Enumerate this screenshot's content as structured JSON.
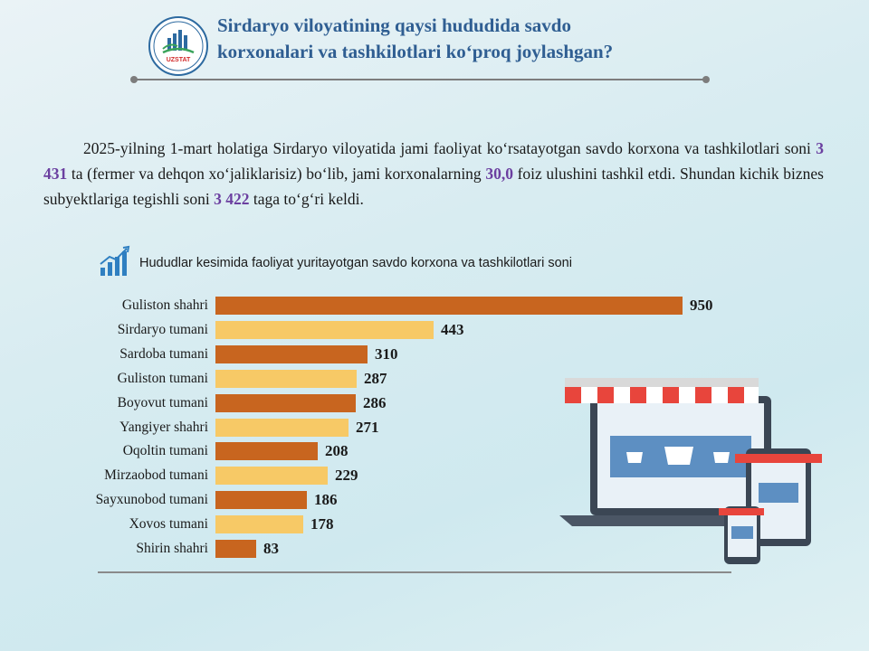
{
  "header": {
    "title_line1": "Sirdaryo viloyatining qaysi hududida savdo",
    "title_line2": "korxonalari va tashkilotlari ko‘proq joylashgan?",
    "logo_text": "UZSTAT"
  },
  "intro": {
    "part1": "2025-yilning 1-mart holatiga Sirdaryo viloyatida jami faoliyat ko‘rsatayotgan savdo korxona va tashkilotlari soni ",
    "total": "3 431",
    "part2": " ta (fermer va dehqon xo‘jaliklarisiz) bo‘lib, jami korxonalarning ",
    "share": "30,0",
    "part3": " foiz ulushini tashkil etdi. Shundan kichik biznes subyektlariga tegishli soni ",
    "small": "3 422",
    "part4": " taga to‘g‘ri keldi."
  },
  "colors": {
    "bar_dark": "#c8651f",
    "bar_light": "#f7c966",
    "title": "#2f5e92",
    "highlight": "#6b3fa0"
  },
  "chart_data": {
    "type": "bar",
    "orientation": "horizontal",
    "title": "Hududlar kesimida faoliyat yuritayotgan savdo korxona va tashkilotlari soni",
    "categories": [
      "Guliston shahri",
      "Sirdaryo tumani",
      "Sardoba tumani",
      "Guliston tumani",
      "Boyovut tumani",
      "Yangiyer shahri",
      "Oqoltin tumani",
      "Mirzaobod tumani",
      "Sayxunobod tumani",
      "Xovos tumani",
      "Shirin shahri"
    ],
    "values": [
      950,
      443,
      310,
      287,
      286,
      271,
      208,
      229,
      186,
      178,
      83
    ],
    "value_labels": [
      "950",
      "443",
      "310",
      "287",
      "286",
      "271",
      "208",
      "229",
      "186",
      "178",
      "83"
    ],
    "xlim": [
      0,
      950
    ],
    "grid": false,
    "legend": "none"
  }
}
